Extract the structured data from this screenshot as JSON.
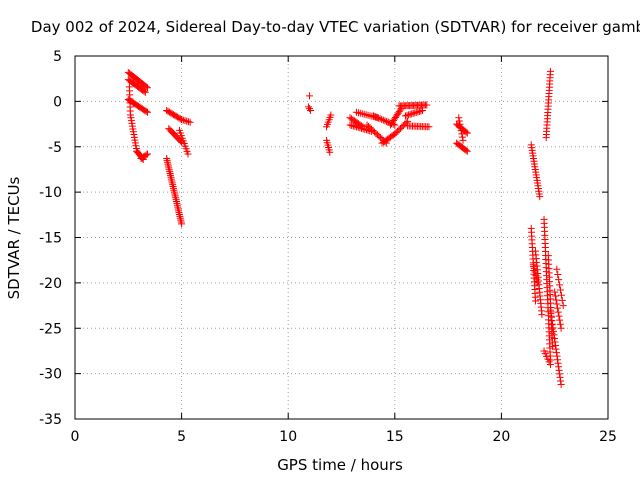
{
  "chart_data": {
    "type": "scatter",
    "title": "Day 002 of 2024, Sidereal Day-to-day VTEC variation (SDTVAR) for receiver gamb",
    "xlabel": "GPS time / hours",
    "ylabel": "SDTVAR / TECUs",
    "xlim": [
      0,
      25
    ],
    "ylim": [
      -35,
      5
    ],
    "x_ticks": [
      0,
      5,
      10,
      15,
      20,
      25
    ],
    "y_ticks": [
      5,
      0,
      -5,
      -10,
      -15,
      -20,
      -25,
      -30,
      -35
    ],
    "grid": true,
    "marker": "+",
    "color": "#ff0000",
    "segments": [
      {
        "x0": 2.5,
        "y0": 3.2,
        "x1": 3.4,
        "y1": 1.5,
        "n": 16
      },
      {
        "x0": 2.5,
        "y0": 2.4,
        "x1": 3.3,
        "y1": 1.0,
        "n": 14
      },
      {
        "x0": 2.55,
        "y0": 1.6,
        "x1": 2.6,
        "y1": -1.5,
        "n": 8
      },
      {
        "x0": 2.5,
        "y0": 0.2,
        "x1": 3.4,
        "y1": -1.2,
        "n": 16
      },
      {
        "x0": 2.6,
        "y0": -1.5,
        "x1": 2.9,
        "y1": -5.5,
        "n": 14
      },
      {
        "x0": 2.9,
        "y0": -5.5,
        "x1": 3.2,
        "y1": -6.4,
        "n": 8
      },
      {
        "x0": 3.1,
        "y0": -6.3,
        "x1": 3.4,
        "y1": -5.8,
        "n": 6
      },
      {
        "x0": 4.3,
        "y0": -1.0,
        "x1": 5.0,
        "y1": -2.0,
        "n": 12
      },
      {
        "x0": 4.4,
        "y0": -3.0,
        "x1": 5.0,
        "y1": -4.5,
        "n": 12
      },
      {
        "x0": 4.9,
        "y0": -3.2,
        "x1": 5.3,
        "y1": -5.8,
        "n": 10
      },
      {
        "x0": 5.0,
        "y0": -2.0,
        "x1": 5.4,
        "y1": -2.3,
        "n": 6
      },
      {
        "x0": 4.3,
        "y0": -6.3,
        "x1": 5.0,
        "y1": -13.5,
        "n": 36
      },
      {
        "x0": 11.0,
        "y0": 0.6,
        "x1": 11.0,
        "y1": 0.6,
        "n": 1
      },
      {
        "x0": 10.95,
        "y0": -0.6,
        "x1": 11.05,
        "y1": -1.0,
        "n": 3
      },
      {
        "x0": 11.8,
        "y0": -2.8,
        "x1": 12.0,
        "y1": -1.5,
        "n": 6
      },
      {
        "x0": 11.8,
        "y0": -4.3,
        "x1": 11.95,
        "y1": -5.6,
        "n": 6
      },
      {
        "x0": 12.9,
        "y0": -1.8,
        "x1": 13.5,
        "y1": -2.8,
        "n": 10
      },
      {
        "x0": 12.9,
        "y0": -2.6,
        "x1": 13.9,
        "y1": -3.3,
        "n": 14
      },
      {
        "x0": 13.2,
        "y0": -1.2,
        "x1": 14.2,
        "y1": -1.8,
        "n": 12
      },
      {
        "x0": 13.7,
        "y0": -2.6,
        "x1": 14.6,
        "y1": -4.6,
        "n": 14
      },
      {
        "x0": 14.0,
        "y0": -1.6,
        "x1": 15.0,
        "y1": -2.6,
        "n": 14
      },
      {
        "x0": 14.4,
        "y0": -4.6,
        "x1": 15.0,
        "y1": -3.6,
        "n": 10
      },
      {
        "x0": 14.8,
        "y0": -2.6,
        "x1": 15.3,
        "y1": -0.8,
        "n": 12
      },
      {
        "x0": 15.0,
        "y0": -3.6,
        "x1": 15.6,
        "y1": -2.2,
        "n": 10
      },
      {
        "x0": 15.2,
        "y0": -0.5,
        "x1": 16.5,
        "y1": -0.4,
        "n": 22
      },
      {
        "x0": 15.5,
        "y0": -1.6,
        "x1": 16.3,
        "y1": -1.0,
        "n": 12
      },
      {
        "x0": 15.6,
        "y0": -2.7,
        "x1": 16.6,
        "y1": -2.8,
        "n": 14
      },
      {
        "x0": 17.9,
        "y0": -2.5,
        "x1": 18.4,
        "y1": -3.5,
        "n": 10
      },
      {
        "x0": 18.0,
        "y0": -1.8,
        "x1": 18.2,
        "y1": -4.3,
        "n": 8
      },
      {
        "x0": 17.9,
        "y0": -4.6,
        "x1": 18.4,
        "y1": -5.5,
        "n": 10
      },
      {
        "x0": 21.4,
        "y0": -4.8,
        "x1": 21.8,
        "y1": -10.5,
        "n": 20
      },
      {
        "x0": 21.4,
        "y0": -14.0,
        "x1": 21.6,
        "y1": -22.0,
        "n": 20
      },
      {
        "x0": 21.6,
        "y0": -16.5,
        "x1": 21.9,
        "y1": -23.5,
        "n": 18
      },
      {
        "x0": 21.5,
        "y0": -18.0,
        "x1": 21.7,
        "y1": -20.0,
        "n": 6
      },
      {
        "x0": 22.0,
        "y0": -13.0,
        "x1": 22.3,
        "y1": -28.5,
        "n": 36
      },
      {
        "x0": 22.2,
        "y0": -17.0,
        "x1": 22.4,
        "y1": -27.0,
        "n": 22
      },
      {
        "x0": 22.3,
        "y0": -23.0,
        "x1": 22.8,
        "y1": -31.2,
        "n": 22
      },
      {
        "x0": 22.5,
        "y0": -21.0,
        "x1": 22.8,
        "y1": -25.0,
        "n": 10
      },
      {
        "x0": 22.6,
        "y0": -18.5,
        "x1": 22.9,
        "y1": -22.5,
        "n": 8
      },
      {
        "x0": 22.0,
        "y0": -27.5,
        "x1": 22.3,
        "y1": -29.0,
        "n": 6
      },
      {
        "x0": 22.1,
        "y0": -4.0,
        "x1": 22.3,
        "y1": 3.3,
        "n": 22
      }
    ]
  }
}
